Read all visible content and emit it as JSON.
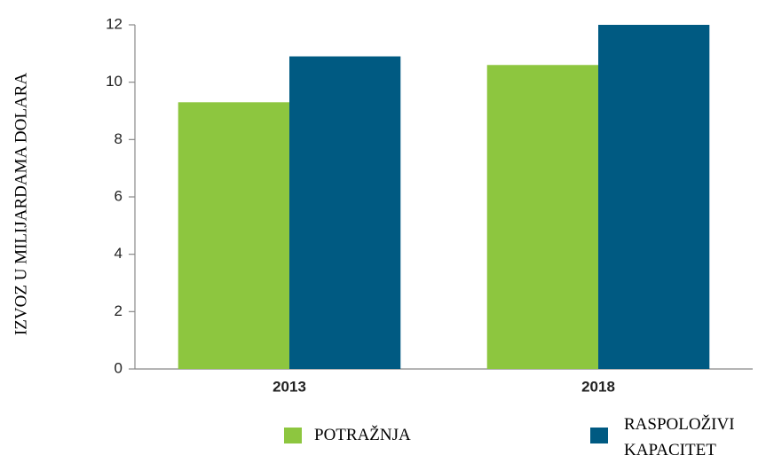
{
  "chart_data": {
    "type": "bar",
    "y_label": "IZVOZ U MILIJARDAMA DOLARA",
    "categories": [
      "2013",
      "2018"
    ],
    "series": [
      {
        "name": "POTRAŽNJA",
        "color": "#8dc63f",
        "values": [
          9.3,
          10.6
        ]
      },
      {
        "name": "RASPOLOŽIVI KAPACITET",
        "color": "#005a82",
        "values": [
          10.9,
          12
        ]
      }
    ],
    "ylim": [
      0,
      12
    ],
    "yticks": [
      0,
      2,
      4,
      6,
      8,
      10,
      12
    ],
    "grid": false
  }
}
